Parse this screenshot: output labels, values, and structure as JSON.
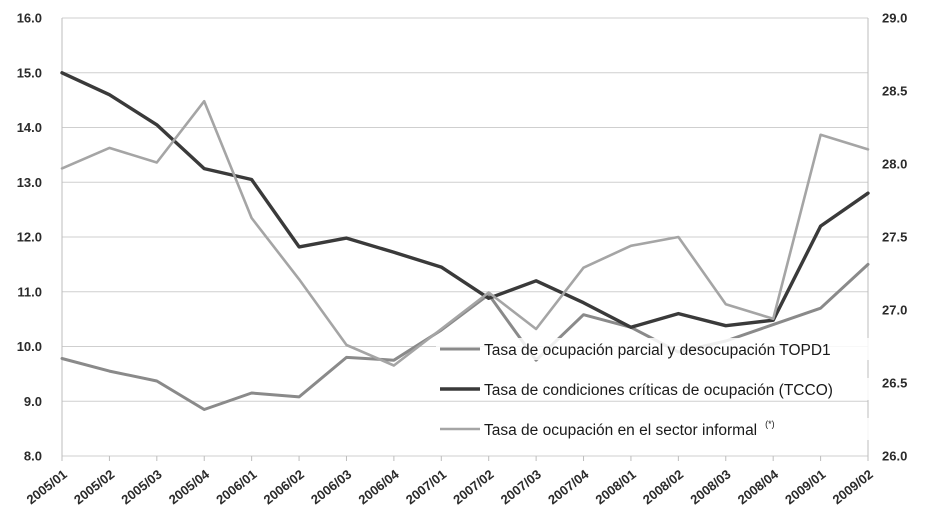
{
  "chart_data": {
    "type": "line",
    "categories": [
      "2005/01",
      "2005/02",
      "2005/03",
      "2005/04",
      "2006/01",
      "2006/02",
      "2006/03",
      "2006/04",
      "2007/01",
      "2007/02",
      "2007/03",
      "2007/04",
      "2008/01",
      "2008/02",
      "2008/03",
      "2008/04",
      "2009/01",
      "2009/02"
    ],
    "y_left": {
      "ticks": [
        "8.0",
        "9.0",
        "10.0",
        "11.0",
        "12.0",
        "13.0",
        "14.0",
        "15.0",
        "16.0"
      ],
      "ylim": [
        8,
        16
      ]
    },
    "y_right": {
      "ticks": [
        "26.0",
        "26.5",
        "27.0",
        "27.5",
        "28.0",
        "28.5",
        "29.0"
      ],
      "ylim": [
        26,
        29
      ]
    },
    "grid": true,
    "legend_position": "bottom-right",
    "series": [
      {
        "name": "Tasa de ocupación parcial y desocupación TOPD1",
        "axis": "left",
        "color": "#8a8a8a",
        "values": [
          9.78,
          9.55,
          9.37,
          8.85,
          9.15,
          9.08,
          9.8,
          9.75,
          10.3,
          10.95,
          9.75,
          10.58,
          10.35,
          9.9,
          10.1,
          10.4,
          10.7,
          11.5
        ]
      },
      {
        "name": "Tasa de condiciones críticas de ocupación (TCCO)",
        "axis": "left",
        "color": "#3a3a3a",
        "values": [
          15.0,
          14.6,
          14.05,
          13.25,
          13.05,
          11.82,
          11.98,
          11.72,
          11.45,
          10.88,
          11.2,
          10.8,
          10.35,
          10.6,
          10.38,
          10.48,
          12.2,
          12.8
        ]
      },
      {
        "name": "Tasa de ocupación en el sector informal",
        "name_note": "(*)",
        "axis": "right",
        "color": "#a5a5a5",
        "values": [
          27.97,
          28.11,
          28.01,
          28.43,
          27.63,
          27.21,
          26.76,
          26.62,
          26.87,
          27.12,
          26.87,
          27.29,
          27.44,
          27.5,
          27.04,
          26.94,
          28.2,
          28.1
        ]
      }
    ]
  }
}
